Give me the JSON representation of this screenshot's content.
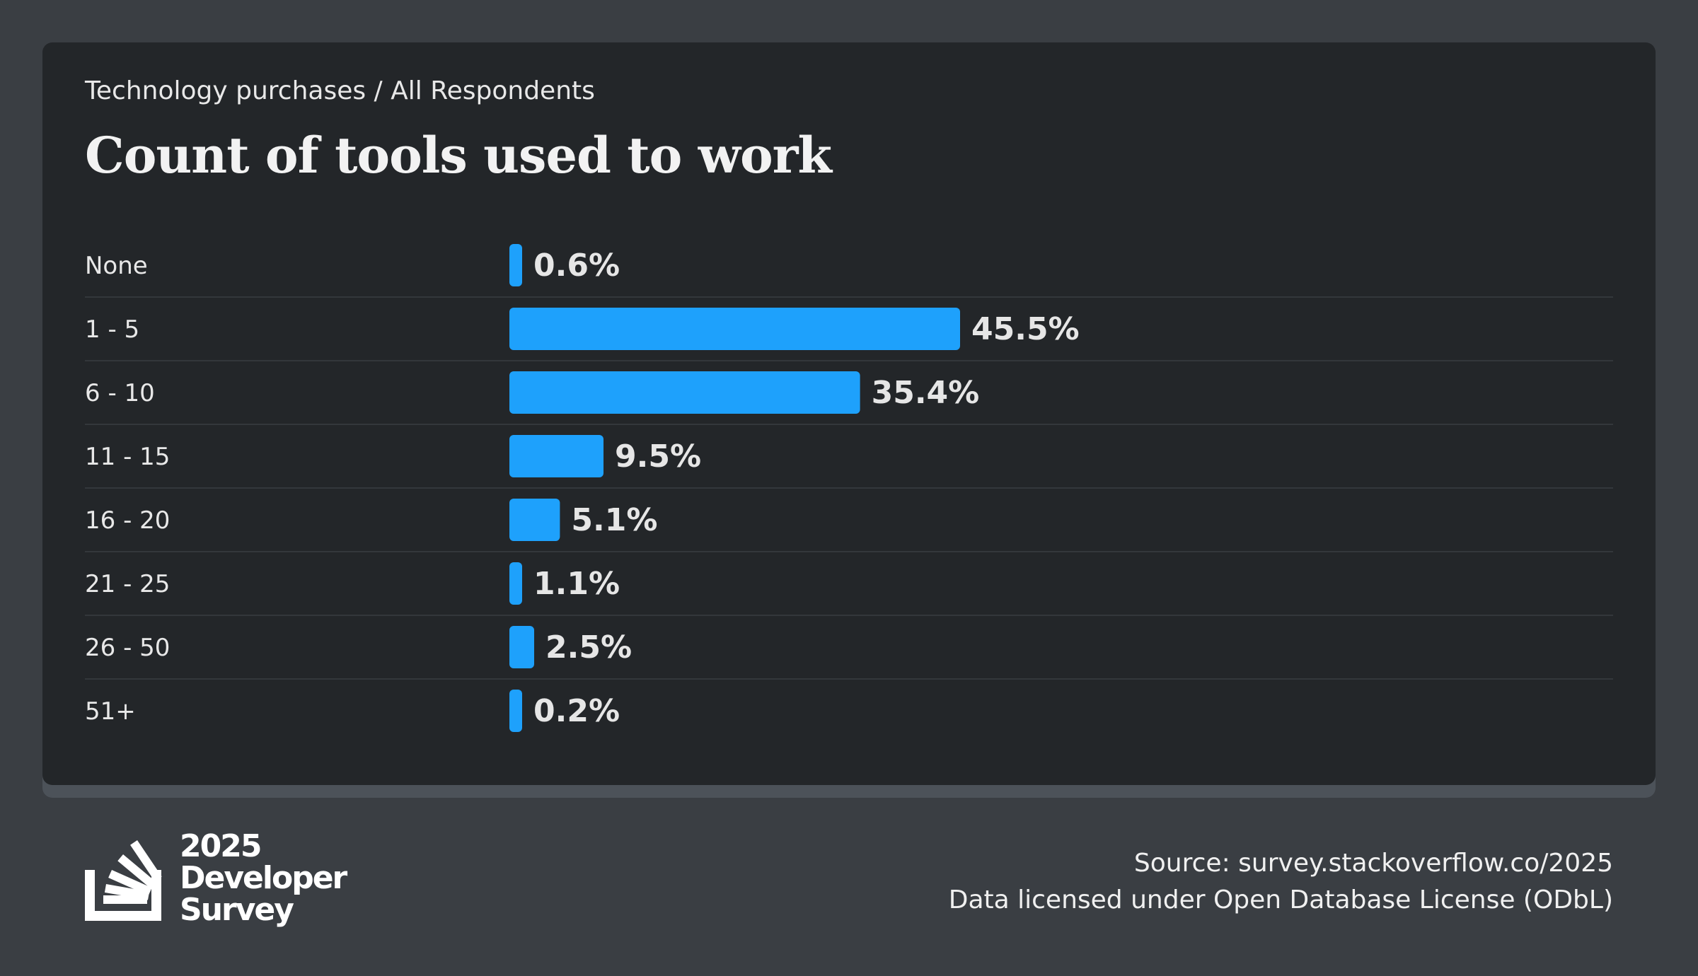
{
  "breadcrumb": "Technology purchases / All Respondents",
  "chart_data": {
    "type": "bar",
    "orientation": "horizontal",
    "title": "Count of tools used to work",
    "categories": [
      "None",
      "1 - 5",
      "6 - 10",
      "11 - 15",
      "16 - 20",
      "21 - 25",
      "26 - 50",
      "51+"
    ],
    "values": [
      0.6,
      45.5,
      35.4,
      9.5,
      5.1,
      1.1,
      2.5,
      0.2
    ],
    "value_labels": [
      "0.6%",
      "45.5%",
      "35.4%",
      "9.5%",
      "5.1%",
      "1.1%",
      "2.5%",
      "0.2%"
    ],
    "unit": "%",
    "grid": false,
    "legend": "none"
  },
  "colors": {
    "bar": "#1ea1fc",
    "value_label": "#e6e6e6",
    "category_label": "#e8e8e8",
    "separator": "#33373b"
  },
  "logo": {
    "icon": "stackoverflow-logo-icon",
    "line1": "2025",
    "line2": "Developer",
    "line3": "Survey"
  },
  "footer": {
    "source": "Source: survey.stackoverflow.co/2025",
    "license": "Data licensed under Open Database License (ODbL)"
  }
}
